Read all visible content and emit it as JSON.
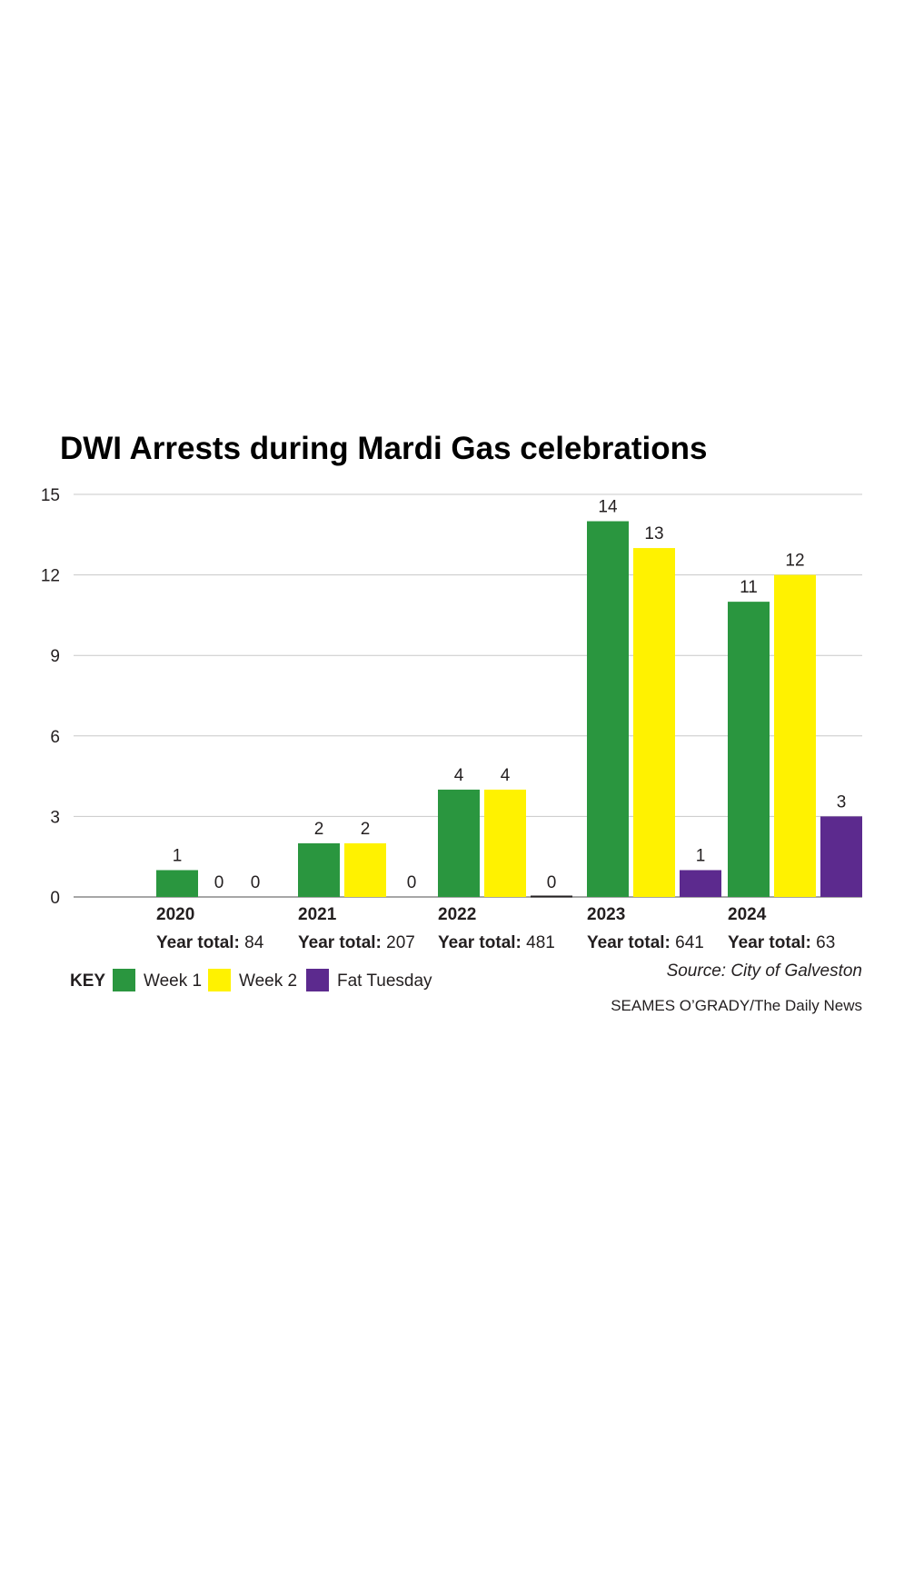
{
  "chart_data": {
    "type": "bar",
    "title": "DWI Arrests during Mardi Gas celebrations",
    "categories": [
      "2020",
      "2021",
      "2022",
      "2023",
      "2024"
    ],
    "series": [
      {
        "name": "Week 1",
        "color": "#2a963f",
        "values": [
          1,
          2,
          4,
          14,
          11
        ]
      },
      {
        "name": "Week 2",
        "color": "#fff200",
        "values": [
          0,
          2,
          4,
          13,
          12
        ]
      },
      {
        "name": "Fat Tuesday",
        "color": "#5c2a8e",
        "values": [
          0,
          0,
          0,
          1,
          3
        ]
      }
    ],
    "year_total_label": "Year total:",
    "year_totals": [
      "84",
      "207",
      "481",
      "641",
      "63"
    ],
    "yticks": [
      0,
      3,
      6,
      9,
      12,
      15
    ],
    "ylim": [
      0,
      15
    ],
    "grid": true,
    "legend": {
      "label": "KEY",
      "placement": "bottom-left"
    },
    "source": "Source: City of Galveston",
    "credit": "SEAMES O’GRADY/The Daily News"
  }
}
